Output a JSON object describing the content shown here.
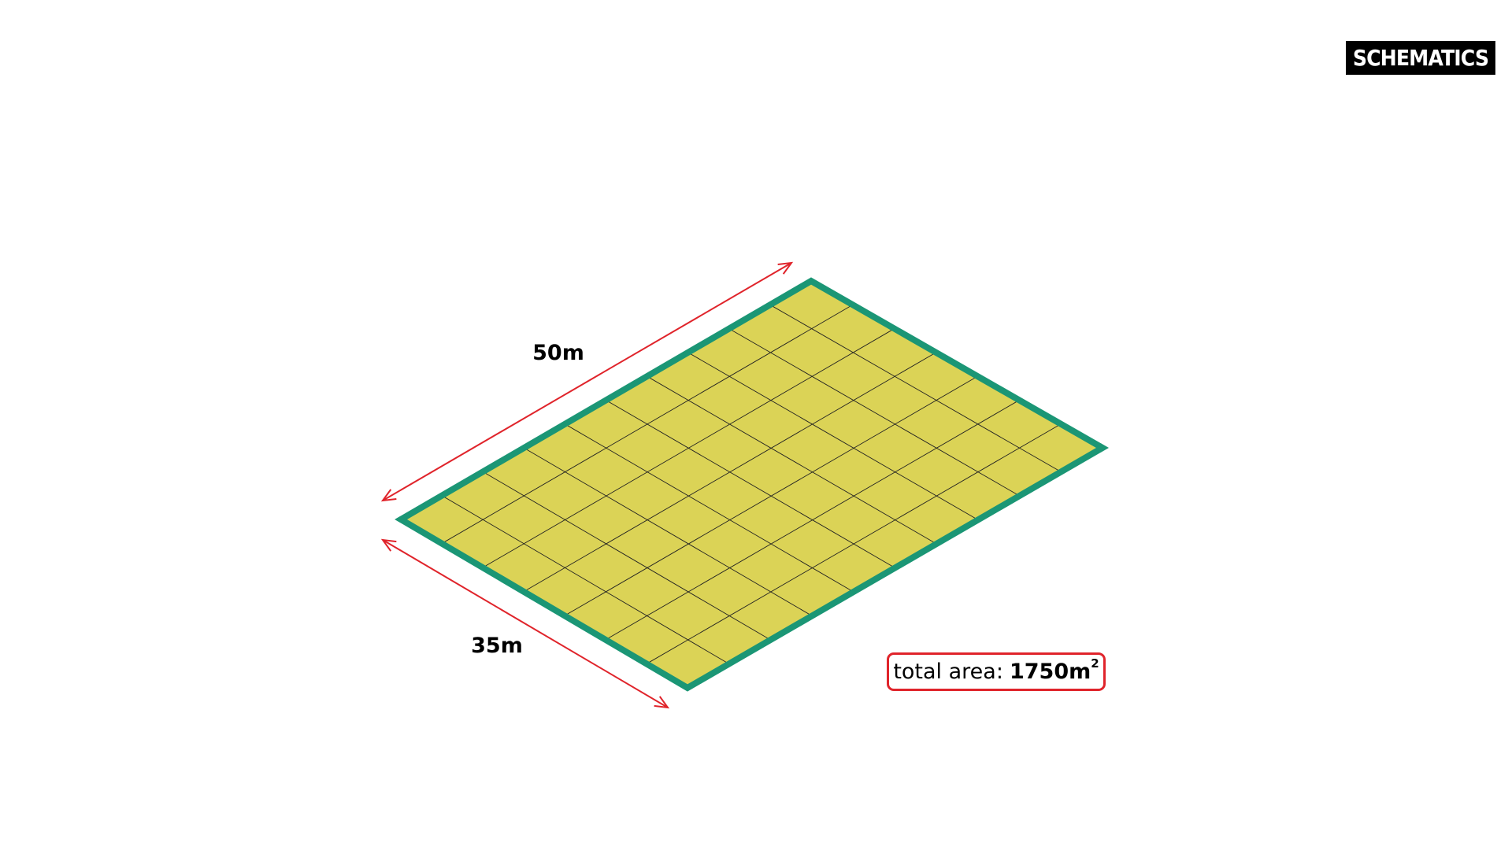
{
  "badge": {
    "label": "SCHEMATICS"
  },
  "plot": {
    "length_label": "50m",
    "width_label": "35m",
    "length": 50,
    "width": 35,
    "unit": "m",
    "grid_columns": 10,
    "grid_rows": 7
  },
  "area": {
    "prefix": "total area:",
    "value": "1750m",
    "exponent": "2"
  },
  "colors": {
    "fill": "#dbd356",
    "border": "#1b9675",
    "grid": "#222222",
    "dimension": "#e0242b"
  }
}
